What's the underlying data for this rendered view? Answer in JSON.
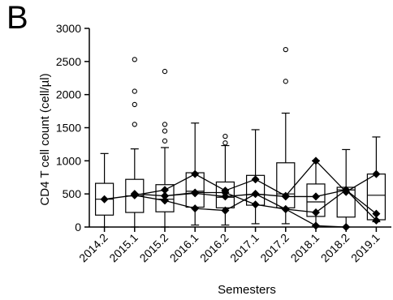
{
  "panel_letter": "B",
  "chart_data": {
    "type": "box",
    "xlabel": "Semesters",
    "ylabel": "CD4 T cell count (cell/µl)",
    "ylim": [
      0,
      3000
    ],
    "yticks": [
      0,
      500,
      1000,
      1500,
      2000,
      2500,
      3000
    ],
    "categories": [
      "2014.2",
      "2015.1",
      "2015.2",
      "2016.1",
      "2016.2",
      "2017.1",
      "2017.2",
      "2018.1",
      "2018.2",
      "2019.1"
    ],
    "boxes": [
      {
        "min": 0,
        "q1": 180,
        "median": 420,
        "q3": 660,
        "max": 1110,
        "outliers": []
      },
      {
        "min": 0,
        "q1": 220,
        "median": 470,
        "q3": 720,
        "max": 1180,
        "outliers": [
          1550,
          1850,
          2050,
          2530
        ]
      },
      {
        "min": 0,
        "q1": 230,
        "median": 420,
        "q3": 640,
        "max": 1200,
        "outliers": [
          1300,
          1450,
          1550,
          2350
        ]
      },
      {
        "min": 30,
        "q1": 300,
        "median": 540,
        "q3": 820,
        "max": 1570,
        "outliers": []
      },
      {
        "min": 30,
        "q1": 290,
        "median": 450,
        "q3": 680,
        "max": 1230,
        "outliers": [
          1270,
          1370
        ]
      },
      {
        "min": 50,
        "q1": 330,
        "median": 490,
        "q3": 780,
        "max": 1470,
        "outliers": []
      },
      {
        "min": 50,
        "q1": 290,
        "median": 500,
        "q3": 970,
        "max": 1720,
        "outliers": [
          2200,
          2680
        ]
      },
      {
        "min": 20,
        "q1": 160,
        "median": 380,
        "q3": 650,
        "max": 1000,
        "outliers": []
      },
      {
        "min": 0,
        "q1": 150,
        "median": 560,
        "q3": 600,
        "max": 1170,
        "outliers": []
      },
      {
        "min": 80,
        "q1": 110,
        "median": 480,
        "q3": 800,
        "max": 1360,
        "outliers": []
      }
    ],
    "individual_series": [
      {
        "values": [
          420,
          480,
          560,
          800,
          550,
          720,
          470,
          1000,
          530,
          800
        ]
      },
      {
        "values": [
          null,
          500,
          470,
          510,
          460,
          500,
          460,
          460,
          560,
          200
        ]
      },
      {
        "values": [
          null,
          480,
          400,
          280,
          250,
          500,
          270,
          220,
          560,
          100
        ]
      },
      {
        "values": [
          null,
          null,
          470,
          520,
          520,
          340,
          270,
          20,
          0,
          null
        ]
      }
    ]
  }
}
